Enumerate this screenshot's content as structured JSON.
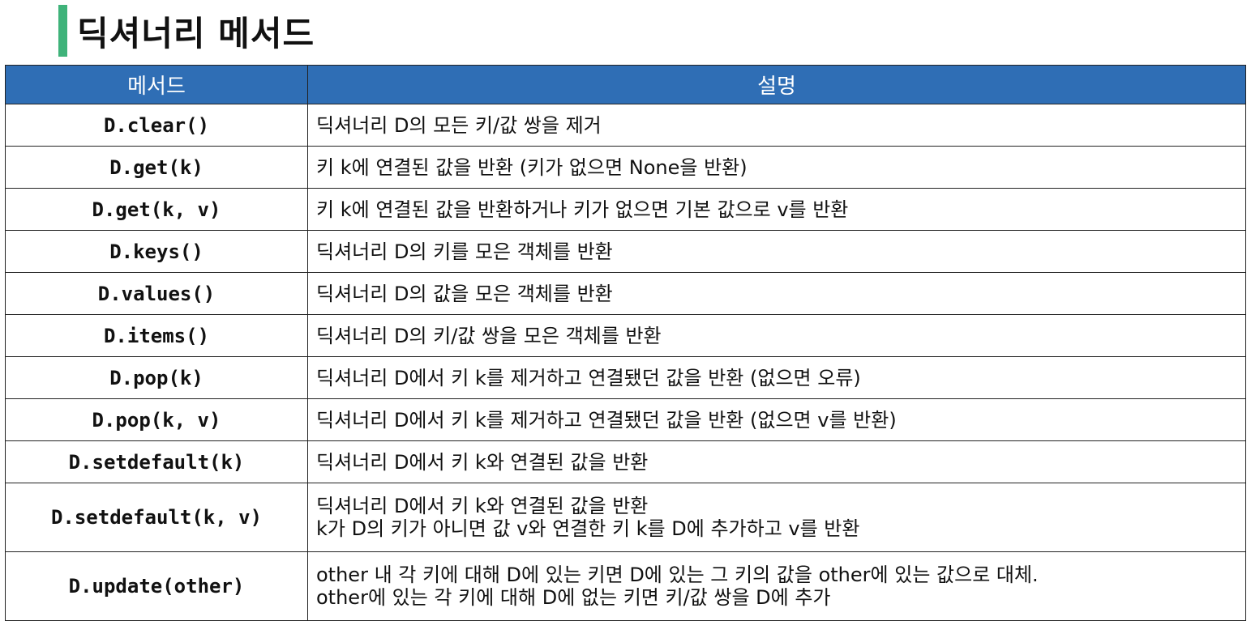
{
  "title": "딕셔너리 메서드",
  "headers": {
    "method": "메서드",
    "description": "설명"
  },
  "rows": [
    {
      "method": "D.clear()",
      "desc": [
        "딕셔너리 D의 모든 키/값 쌍을 제거"
      ]
    },
    {
      "method": "D.get(k)",
      "desc": [
        "키 k에 연결된 값을 반환 (키가 없으면 None을 반환)"
      ]
    },
    {
      "method": "D.get(k, v)",
      "desc": [
        "키 k에 연결된 값을 반환하거나 키가 없으면 기본 값으로 v를 반환"
      ]
    },
    {
      "method": "D.keys()",
      "desc": [
        "딕셔너리 D의 키를 모은 객체를 반환"
      ]
    },
    {
      "method": "D.values()",
      "desc": [
        "딕셔너리 D의 값을 모은 객체를 반환"
      ]
    },
    {
      "method": "D.items()",
      "desc": [
        "딕셔너리 D의 키/값 쌍을 모은 객체를 반환"
      ]
    },
    {
      "method": "D.pop(k)",
      "desc": [
        "딕셔너리 D에서 키 k를 제거하고 연결됐던 값을 반환 (없으면 오류)"
      ]
    },
    {
      "method": "D.pop(k, v)",
      "desc": [
        "딕셔너리 D에서 키 k를 제거하고 연결됐던 값을 반환 (없으면 v를 반환)"
      ]
    },
    {
      "method": "D.setdefault(k)",
      "desc": [
        "딕셔너리 D에서 키 k와 연결된 값을 반환"
      ]
    },
    {
      "method": "D.setdefault(k, v)",
      "desc": [
        "딕셔너리 D에서 키 k와 연결된 값을 반환",
        "k가 D의 키가 아니면 값 v와 연결한 키 k를 D에 추가하고 v를 반환"
      ]
    },
    {
      "method": "D.update(other)",
      "desc": [
        "other 내 각 키에 대해 D에 있는 키면 D에 있는 그 키의 값을 other에 있는 값으로 대체.",
        "other에 있는 각 키에 대해 D에 없는 키면 키/값 쌍을 D에 추가"
      ]
    }
  ],
  "colors": {
    "header_bg": "#2f6eb5",
    "accent_bar": "#3fb37a",
    "border": "#222222"
  }
}
